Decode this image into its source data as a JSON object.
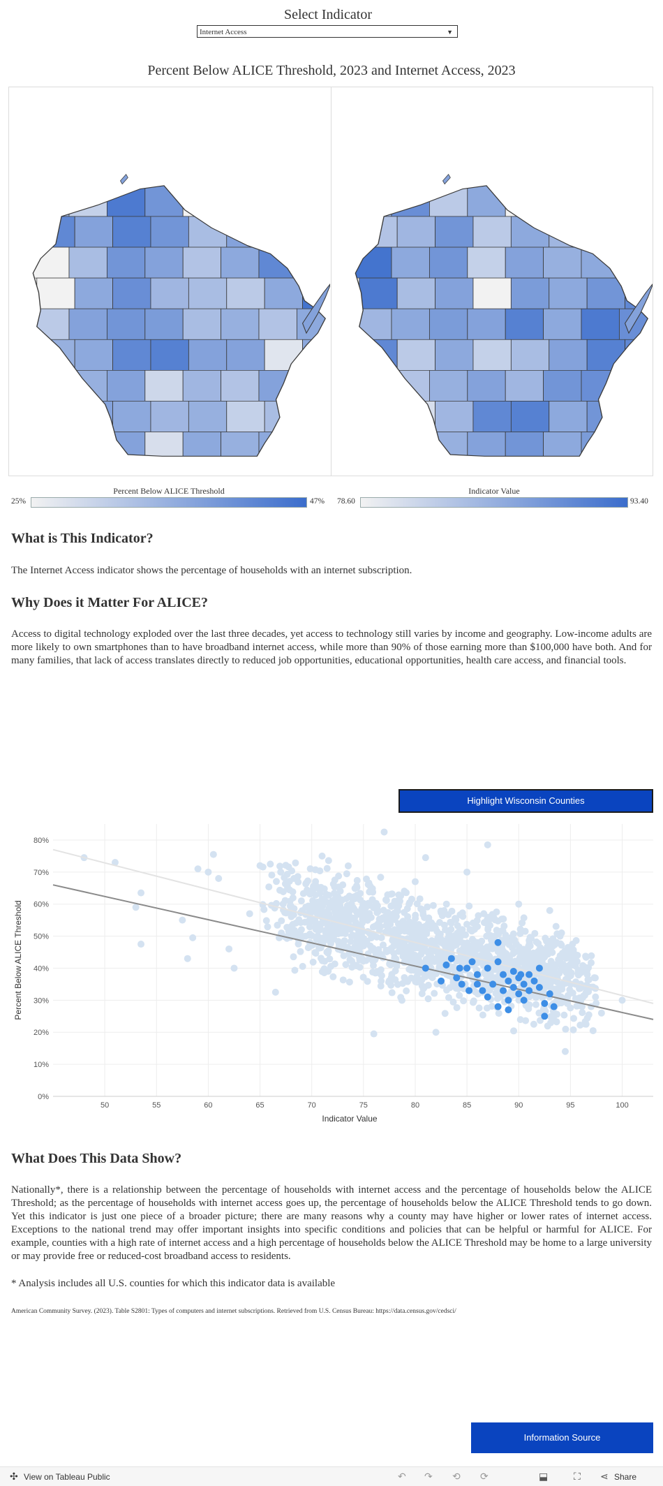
{
  "selector": {
    "title": "Select Indicator",
    "value": "Internet Access"
  },
  "map_section": {
    "title": "Percent Below ALICE Threshold, 2023 and Internet Access, 2023",
    "legend_left": {
      "title": "Percent Below ALICE Threshold",
      "min": "25%",
      "max": "47%"
    },
    "legend_right": {
      "title": "Indicator Value",
      "min": "78.60",
      "max": "93.40"
    }
  },
  "colors": {
    "light": "#f2f2f2",
    "dark": "#3b6dcc",
    "highlight": "#3d8ee6",
    "faded": "#d4e2f1",
    "button": "#0a44bf"
  },
  "sections": {
    "what_title": "What is This Indicator?",
    "what_text": "The Internet Access indicator shows the percentage of households with an internet subscription.",
    "why_title": "Why Does it Matter For ALICE?",
    "why_text": "Access to digital technology exploded over the last three decades, yet access to technology still varies by income and geography. Low-income adults are more likely to own smartphones than to have broadband internet access, while more than 90% of those earning more than $100,000 have both. And for many families, that lack of access translates directly to reduced job opportunities, educational opportunities, health care access, and financial tools.",
    "show_title": "What Does This Data Show?",
    "show_text": "Nationally*, there is a relationship between the percentage of households with internet access and the percentage of households below the ALICE Threshold; as the percentage of households with internet access goes up, the percentage of households below the ALICE Threshold tends to go down. Yet this indicator is just one piece of a broader picture; there are many reasons why a county may have higher or lower rates of internet access. Exceptions to the national trend may offer important insights into specific conditions and policies that can be helpful or harmful for ALICE. For example, counties with a high rate of internet access and a high percentage of households below the ALICE Threshold may be home to a large university or may provide free or reduced-cost broadband access to residents.",
    "footnote": "* Analysis includes all U.S. counties for which this indicator data is available",
    "source": "American Community Survey. (2023). Table S2801: Types of computers and internet subscriptions. Retrieved from U.S. Census Bureau: https://data.census.gov/cedsci/"
  },
  "buttons": {
    "highlight": "Highlight Wisconsin Counties",
    "info": "Information Source"
  },
  "footer": {
    "tableau": "View on Tableau Public",
    "share": "Share"
  },
  "chart_data": {
    "type": "scatter",
    "xlabel": "Indicator Value",
    "ylabel": "Percent Below ALICE Threshold",
    "xlim": [
      45,
      103
    ],
    "ylim": [
      0,
      0.85
    ],
    "x_ticks": [
      50,
      55,
      60,
      65,
      70,
      75,
      80,
      85,
      90,
      95,
      100
    ],
    "y_ticks": [
      0,
      0.1,
      0.2,
      0.3,
      0.4,
      0.5,
      0.6,
      0.7,
      0.8
    ],
    "y_tick_labels": [
      "0%",
      "10%",
      "20%",
      "30%",
      "40%",
      "50%",
      "60%",
      "70%",
      "80%"
    ],
    "grid": true,
    "trend_lines": [
      {
        "name": "National trend",
        "x": [
          45,
          103
        ],
        "y": [
          0.77,
          0.29
        ]
      },
      {
        "name": "Wisconsin trend",
        "x": [
          45,
          103
        ],
        "y": [
          0.66,
          0.24
        ]
      }
    ],
    "series": [
      {
        "name": "Wisconsin counties (highlighted)",
        "points": [
          [
            81,
            0.4
          ],
          [
            82.5,
            0.36
          ],
          [
            83,
            0.41
          ],
          [
            83.5,
            0.43
          ],
          [
            84,
            0.37
          ],
          [
            84.5,
            0.35
          ],
          [
            85,
            0.4
          ],
          [
            85.5,
            0.42
          ],
          [
            86,
            0.38
          ],
          [
            86.5,
            0.33
          ],
          [
            87,
            0.4
          ],
          [
            87.5,
            0.35
          ],
          [
            88,
            0.48
          ],
          [
            88,
            0.42
          ],
          [
            88.5,
            0.38
          ],
          [
            88.5,
            0.33
          ],
          [
            89,
            0.36
          ],
          [
            89,
            0.3
          ],
          [
            89.5,
            0.39
          ],
          [
            89.5,
            0.34
          ],
          [
            90,
            0.37
          ],
          [
            90,
            0.32
          ],
          [
            90.5,
            0.35
          ],
          [
            90.5,
            0.3
          ],
          [
            91,
            0.38
          ],
          [
            91,
            0.33
          ],
          [
            91.5,
            0.36
          ],
          [
            92,
            0.4
          ],
          [
            92,
            0.34
          ],
          [
            92.5,
            0.29
          ],
          [
            92.5,
            0.25
          ],
          [
            93,
            0.32
          ],
          [
            93.4,
            0.28
          ],
          [
            87,
            0.31
          ],
          [
            88,
            0.28
          ],
          [
            89,
            0.27
          ],
          [
            86,
            0.35
          ],
          [
            84.3,
            0.4
          ],
          [
            85.2,
            0.33
          ],
          [
            90.2,
            0.38
          ]
        ]
      },
      {
        "name": "All U.S. counties",
        "points": [
          [
            48,
            0.745
          ],
          [
            51,
            0.73
          ],
          [
            53,
            0.59
          ],
          [
            53.5,
            0.635
          ],
          [
            53.5,
            0.475
          ],
          [
            57.5,
            0.55
          ],
          [
            58,
            0.43
          ],
          [
            58.5,
            0.495
          ],
          [
            59,
            0.71
          ],
          [
            60,
            0.7
          ],
          [
            60.5,
            0.755
          ],
          [
            61,
            0.68
          ],
          [
            62,
            0.46
          ],
          [
            62.5,
            0.4
          ],
          [
            64,
            0.57
          ],
          [
            65,
            0.72
          ],
          [
            66.5,
            0.325
          ],
          [
            67,
            0.7
          ],
          [
            68,
            0.58
          ],
          [
            69,
            0.61
          ],
          [
            71,
            0.75
          ],
          [
            73,
            0.66
          ],
          [
            75,
            0.6
          ],
          [
            76,
            0.195
          ],
          [
            77,
            0.825
          ],
          [
            78,
            0.52
          ],
          [
            80,
            0.67
          ],
          [
            81,
            0.745
          ],
          [
            82,
            0.2
          ],
          [
            85,
            0.7
          ],
          [
            87,
            0.785
          ],
          [
            90,
            0.6
          ],
          [
            93,
            0.58
          ],
          [
            94,
            0.5
          ],
          [
            95,
            0.44
          ],
          [
            96,
            0.35
          ],
          [
            97,
            0.28
          ],
          [
            98,
            0.26
          ],
          [
            100,
            0.3
          ],
          [
            94.5,
            0.14
          ]
        ]
      }
    ]
  }
}
